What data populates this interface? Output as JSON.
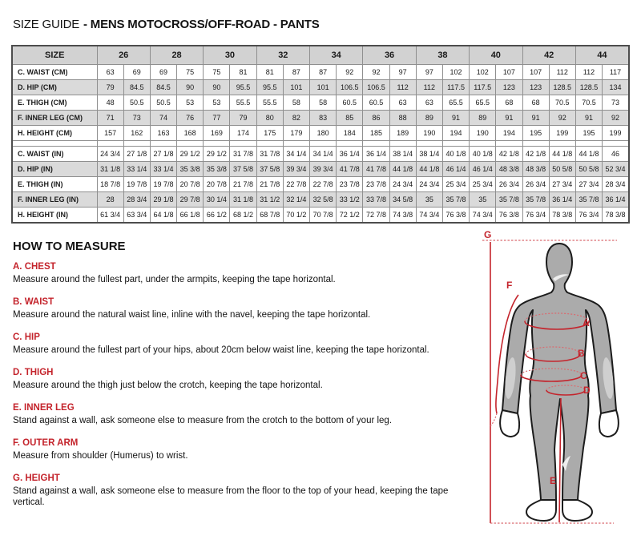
{
  "title": {
    "prefix": "SIZE GUIDE",
    "rest": "- MENS MOTOCROSS/OFF-ROAD - PANTS"
  },
  "size_table": {
    "corner_label": "SIZE",
    "sizes": [
      "26",
      "28",
      "30",
      "32",
      "34",
      "36",
      "38",
      "40",
      "42",
      "44"
    ],
    "cm_rows": [
      {
        "label": "C. WAIST (CM)",
        "values": [
          "63",
          "69",
          "69",
          "75",
          "75",
          "81",
          "81",
          "87",
          "87",
          "92",
          "92",
          "97",
          "97",
          "102",
          "102",
          "107",
          "107",
          "112",
          "112",
          "117"
        ]
      },
      {
        "label": "D. HIP (CM)",
        "values": [
          "79",
          "84.5",
          "84.5",
          "90",
          "90",
          "95.5",
          "95.5",
          "101",
          "101",
          "106.5",
          "106.5",
          "112",
          "112",
          "117.5",
          "117.5",
          "123",
          "123",
          "128.5",
          "128.5",
          "134"
        ]
      },
      {
        "label": "E. THIGH (CM)",
        "values": [
          "48",
          "50.5",
          "50.5",
          "53",
          "53",
          "55.5",
          "55.5",
          "58",
          "58",
          "60.5",
          "60.5",
          "63",
          "63",
          "65.5",
          "65.5",
          "68",
          "68",
          "70.5",
          "70.5",
          "73"
        ]
      },
      {
        "label": "F. INNER LEG (CM)",
        "values": [
          "71",
          "73",
          "74",
          "76",
          "77",
          "79",
          "80",
          "82",
          "83",
          "85",
          "86",
          "88",
          "89",
          "91",
          "89",
          "91",
          "91",
          "92",
          "91",
          "92"
        ]
      },
      {
        "label": "H. HEIGHT (CM)",
        "values": [
          "157",
          "162",
          "163",
          "168",
          "169",
          "174",
          "175",
          "179",
          "180",
          "184",
          "185",
          "189",
          "190",
          "194",
          "190",
          "194",
          "195",
          "199",
          "195",
          "199"
        ]
      }
    ],
    "in_rows": [
      {
        "label": "C. WAIST (IN)",
        "values": [
          "24 3/4",
          "27 1/8",
          "27 1/8",
          "29 1/2",
          "29 1/2",
          "31 7/8",
          "31 7/8",
          "34 1/4",
          "34 1/4",
          "36 1/4",
          "36 1/4",
          "38 1/4",
          "38 1/4",
          "40 1/8",
          "40 1/8",
          "42 1/8",
          "42 1/8",
          "44 1/8",
          "44 1/8",
          "46"
        ]
      },
      {
        "label": "D. HIP (IN)",
        "values": [
          "31 1/8",
          "33 1/4",
          "33 1/4",
          "35 3/8",
          "35 3/8",
          "37 5/8",
          "37 5/8",
          "39 3/4",
          "39 3/4",
          "41 7/8",
          "41 7/8",
          "44 1/8",
          "44 1/8",
          "46 1/4",
          "46 1/4",
          "48 3/8",
          "48 3/8",
          "50 5/8",
          "50 5/8",
          "52 3/4"
        ]
      },
      {
        "label": "E. THIGH (IN)",
        "values": [
          "18 7/8",
          "19 7/8",
          "19 7/8",
          "20 7/8",
          "20 7/8",
          "21 7/8",
          "21 7/8",
          "22 7/8",
          "22 7/8",
          "23 7/8",
          "23 7/8",
          "24 3/4",
          "24 3/4",
          "25 3/4",
          "25 3/4",
          "26 3/4",
          "26 3/4",
          "27 3/4",
          "27 3/4",
          "28 3/4"
        ]
      },
      {
        "label": "F. INNER LEG (IN)",
        "values": [
          "28",
          "28 3/4",
          "29 1/8",
          "29 7/8",
          "30 1/4",
          "31 1/8",
          "31 1/2",
          "32 1/4",
          "32 5/8",
          "33 1/2",
          "33 7/8",
          "34 5/8",
          "35",
          "35 7/8",
          "35",
          "35 7/8",
          "35 7/8",
          "36 1/4",
          "35 7/8",
          "36 1/4"
        ]
      },
      {
        "label": "H. HEIGHT (IN)",
        "values": [
          "61 3/4",
          "63 3/4",
          "64 1/8",
          "66 1/8",
          "66 1/2",
          "68 1/2",
          "68 7/8",
          "70 1/2",
          "70 7/8",
          "72 1/2",
          "72 7/8",
          "74 3/8",
          "74 3/4",
          "76 3/8",
          "74 3/4",
          "76 3/8",
          "76 3/4",
          "78 3/8",
          "76 3/4",
          "78 3/8"
        ]
      }
    ]
  },
  "how_to_measure": {
    "heading": "HOW TO MEASURE",
    "sections": [
      {
        "letter_label": "A. CHEST",
        "text": "Measure around the fullest part, under the armpits, keeping the tape horizontal."
      },
      {
        "letter_label": "B. WAIST",
        "text": "Measure around the natural waist line, inline with the navel, keeping the tape horizontal."
      },
      {
        "letter_label": "C. HIP",
        "text": "Measure around the fullest part of your hips, about 20cm below waist line, keeping the tape horizontal."
      },
      {
        "letter_label": "D. THIGH",
        "text": "Measure around the thigh just below the crotch, keeping the tape horizontal."
      },
      {
        "letter_label": "E. INNER LEG",
        "text": "Stand against a wall, ask someone else to measure from the crotch to the bottom of your leg."
      },
      {
        "letter_label": "F. OUTER ARM",
        "text": "Measure from shoulder (Humerus) to wrist."
      },
      {
        "letter_label": "G. HEIGHT",
        "text": "Stand against a wall, ask someone else to measure from the floor to the top of your head, keeping the tape vertical."
      }
    ]
  },
  "figure": {
    "labels": {
      "a": "A",
      "b": "B",
      "c": "C",
      "d": "D",
      "e": "E",
      "f": "F",
      "g": "G"
    }
  },
  "colors": {
    "accent_red": "#c4242c",
    "table_stripe": "#dadada",
    "table_header_bg": "#d2d2d2",
    "body_gray": "#ababab"
  }
}
